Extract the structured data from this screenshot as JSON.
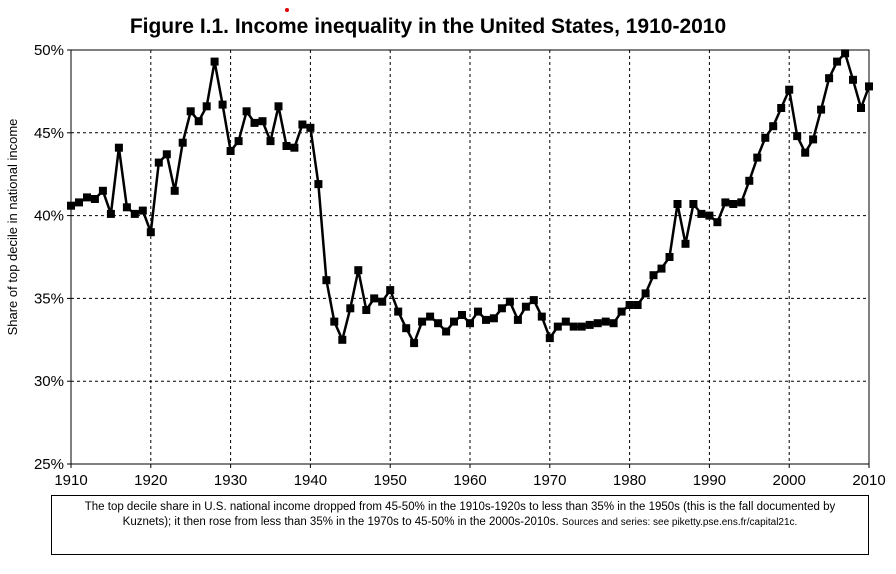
{
  "chart_data": {
    "type": "line",
    "title": "Figure I.1. Income inequality in the United States, 1910-2010",
    "xlabel": "",
    "ylabel": "Share of top decile in national income",
    "xlim": [
      1910,
      2010
    ],
    "ylim": [
      0.25,
      0.5
    ],
    "x_ticks": [
      1910,
      1920,
      1930,
      1940,
      1950,
      1960,
      1970,
      1980,
      1990,
      2000,
      2010
    ],
    "x_tick_labels": [
      "1910",
      "1920",
      "1930",
      "1940",
      "1950",
      "1960",
      "1970",
      "1980",
      "1990",
      "2000",
      "2010"
    ],
    "y_ticks": [
      0.25,
      0.3,
      0.35,
      0.4,
      0.45,
      0.5
    ],
    "y_tick_labels": [
      "25%",
      "30%",
      "35%",
      "40%",
      "45%",
      "50%"
    ],
    "grid": true,
    "marker": "square",
    "series": [
      {
        "x": [
          1910,
          1911,
          1912,
          1913,
          1914,
          1915,
          1916,
          1917,
          1918,
          1919,
          1920,
          1921,
          1922,
          1923,
          1924,
          1925,
          1926,
          1927,
          1928,
          1929,
          1930,
          1931,
          1932,
          1933,
          1934,
          1935,
          1936,
          1937,
          1938,
          1939,
          1940,
          1941,
          1942,
          1943,
          1944,
          1945,
          1946,
          1947,
          1948,
          1949,
          1950,
          1951,
          1952,
          1953,
          1954,
          1955,
          1956,
          1957,
          1958,
          1959,
          1960,
          1961,
          1962,
          1963,
          1964,
          1965,
          1966,
          1967,
          1968,
          1969,
          1970,
          1971,
          1972,
          1973,
          1974,
          1975,
          1976,
          1977,
          1978,
          1979,
          1980,
          1981,
          1982,
          1983,
          1984,
          1985,
          1986,
          1987,
          1988,
          1989,
          1990,
          1991,
          1992,
          1993,
          1994,
          1995,
          1996,
          1997,
          1998,
          1999,
          2000,
          2001,
          2002,
          2003,
          2004,
          2005,
          2006,
          2007,
          2008,
          2009,
          2010
        ],
        "values": [
          0.406,
          0.408,
          0.411,
          0.41,
          0.415,
          0.401,
          0.441,
          0.405,
          0.401,
          0.403,
          0.39,
          0.432,
          0.437,
          0.415,
          0.444,
          0.463,
          0.457,
          0.466,
          0.493,
          0.467,
          0.439,
          0.445,
          0.463,
          0.456,
          0.457,
          0.445,
          0.466,
          0.442,
          0.441,
          0.455,
          0.453,
          0.419,
          0.361,
          0.336,
          0.325,
          0.344,
          0.367,
          0.343,
          0.35,
          0.348,
          0.355,
          0.342,
          0.332,
          0.323,
          0.336,
          0.339,
          0.335,
          0.33,
          0.336,
          0.34,
          0.335,
          0.342,
          0.337,
          0.338,
          0.344,
          0.348,
          0.337,
          0.345,
          0.349,
          0.339,
          0.326,
          0.333,
          0.336,
          0.333,
          0.333,
          0.334,
          0.335,
          0.336,
          0.335,
          0.342,
          0.346,
          0.346,
          0.353,
          0.364,
          0.368,
          0.375,
          0.407,
          0.383,
          0.407,
          0.401,
          0.4,
          0.396,
          0.408,
          0.407,
          0.408,
          0.421,
          0.435,
          0.447,
          0.454,
          0.465,
          0.476,
          0.448,
          0.438,
          0.446,
          0.464,
          0.483,
          0.493,
          0.498,
          0.482,
          0.465,
          0.478
        ]
      }
    ]
  },
  "caption": {
    "main": "The top decile share in U.S. national income dropped from 45-50% in the 1910s-1920s to less than 35% in the 1950s (this is the fall documented by Kuznets); it then rose from less than 35% in the 1970s to 45-50% in the 2000s-2010s.",
    "source": "Sources and series: see piketty.pse.ens.fr/capital21c."
  }
}
